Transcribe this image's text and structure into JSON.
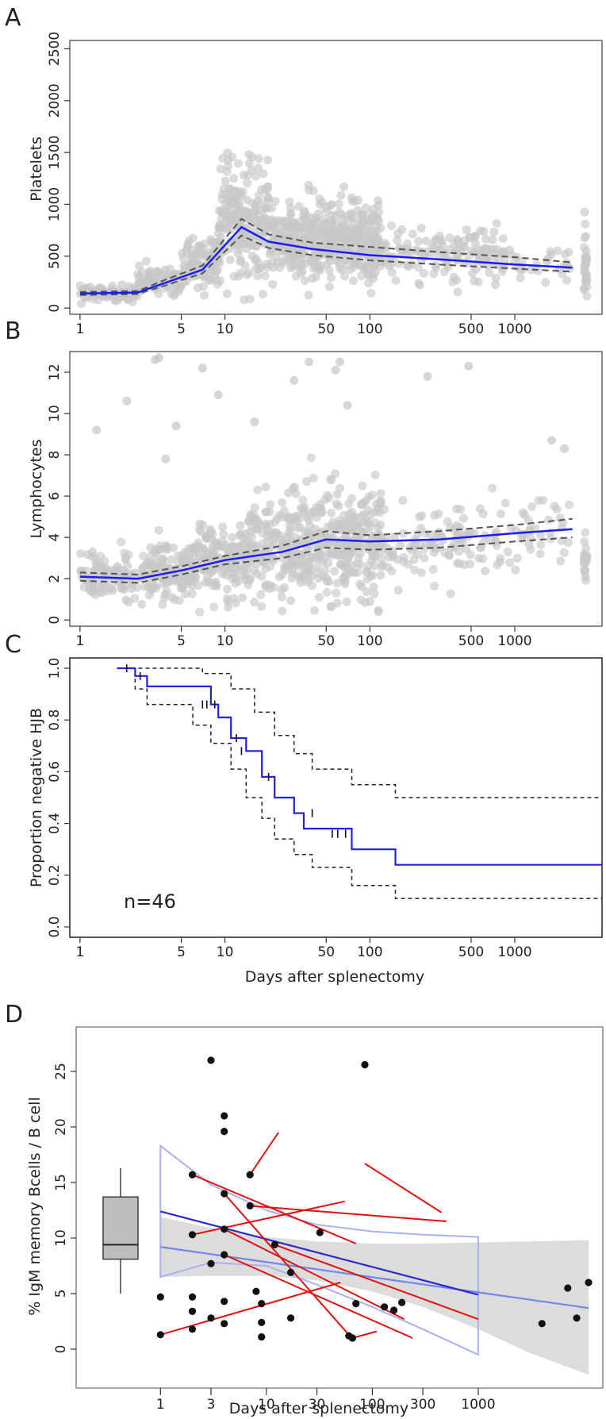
{
  "figure": {
    "colors": {
      "frame": "#666666",
      "points_grey": "#c8c8c8",
      "fit_blue": "#1a1aff",
      "ci_dash": "#555555",
      "km_dash": "#222222",
      "km_line": "#2222dd",
      "red_lines": "#e01010",
      "dots_black": "#111111",
      "box_fill": "#bdbdbd",
      "ribbon": "#dcdcdc",
      "line_dark_blue": "#2a2acc",
      "line_light_blue": "#6f86ee",
      "outline_light_blue": "#a9b2ee"
    }
  },
  "chart_data": [
    {
      "panel": "A",
      "type": "scatter",
      "x_scale": "log",
      "xlim": [
        0.85,
        4000
      ],
      "ylim": [
        -60,
        2580
      ],
      "x_ticks": [
        1,
        5,
        10,
        50,
        100,
        500,
        1000
      ],
      "x_tick_labels": [
        "1",
        "5",
        "10",
        "50",
        "100",
        "500",
        "1000"
      ],
      "y_ticks": [
        0,
        500,
        1000,
        1500,
        2000,
        2500
      ],
      "y_tick_labels": [
        "0",
        "500",
        "1000",
        "1500",
        "2000",
        "2500"
      ],
      "ylabel": "Platelets",
      "xlabel": "",
      "fit": {
        "x": [
          1,
          2.5,
          4,
          7,
          13,
          20,
          40,
          100,
          300,
          1000,
          2500
        ],
        "y": [
          140,
          150,
          250,
          370,
          780,
          640,
          570,
          510,
          470,
          420,
          390
        ]
      },
      "ci_upper": {
        "x": [
          1,
          2.5,
          4,
          7,
          13,
          20,
          40,
          100,
          300,
          1000,
          2500
        ],
        "y": [
          155,
          165,
          280,
          410,
          860,
          710,
          630,
          590,
          540,
          490,
          440
        ]
      },
      "ci_lower": {
        "x": [
          1,
          2.5,
          4,
          7,
          13,
          20,
          40,
          100,
          300,
          1000,
          2500
        ],
        "y": [
          125,
          135,
          225,
          335,
          700,
          580,
          510,
          460,
          420,
          380,
          350
        ]
      },
      "point_clusters": [
        {
          "x_from": 1,
          "x_to": 2.5,
          "y_center": 150,
          "y_spread": 80,
          "count": 90
        },
        {
          "x_from": 2.5,
          "x_to": 5,
          "y_center": 260,
          "y_spread": 120,
          "count": 90
        },
        {
          "x_from": 5,
          "x_to": 9,
          "y_center": 430,
          "y_spread": 260,
          "count": 100
        },
        {
          "x_from": 9,
          "x_to": 20,
          "y_center": 850,
          "y_spread": 450,
          "count": 230
        },
        {
          "x_from": 20,
          "x_to": 50,
          "y_center": 640,
          "y_spread": 330,
          "count": 230
        },
        {
          "x_from": 50,
          "x_to": 120,
          "y_center": 640,
          "y_spread": 330,
          "count": 250
        },
        {
          "x_from": 120,
          "x_to": 400,
          "y_center": 520,
          "y_spread": 220,
          "count": 80
        },
        {
          "x_from": 400,
          "x_to": 1000,
          "y_center": 520,
          "y_spread": 260,
          "count": 70
        },
        {
          "x_from": 1000,
          "x_to": 2500,
          "y_center": 420,
          "y_spread": 150,
          "count": 25
        },
        {
          "x_from": 3000,
          "x_to": 3150,
          "y_center": 520,
          "y_spread": 300,
          "count": 30
        }
      ]
    },
    {
      "panel": "B",
      "type": "scatter",
      "x_scale": "log",
      "xlim": [
        0.85,
        4000
      ],
      "ylim": [
        -0.3,
        13
      ],
      "x_ticks": [
        1,
        5,
        10,
        50,
        100,
        500,
        1000
      ],
      "x_tick_labels": [
        "1",
        "5",
        "10",
        "50",
        "100",
        "500",
        "1000"
      ],
      "y_ticks": [
        0,
        2,
        4,
        6,
        8,
        10,
        12
      ],
      "y_tick_labels": [
        "0",
        "2",
        "4",
        "6",
        "8",
        "10",
        "12"
      ],
      "ylabel": "Lymphocytes",
      "xlabel": "",
      "fit": {
        "x": [
          1,
          2.5,
          5,
          10,
          25,
          50,
          100,
          300,
          1000,
          2500
        ],
        "y": [
          2.1,
          2.0,
          2.4,
          2.9,
          3.3,
          3.9,
          3.8,
          3.9,
          4.2,
          4.4
        ]
      },
      "ci_upper": {
        "x": [
          1,
          2.5,
          5,
          10,
          25,
          50,
          100,
          300,
          1000,
          2500
        ],
        "y": [
          2.3,
          2.2,
          2.6,
          3.1,
          3.6,
          4.3,
          4.1,
          4.3,
          4.6,
          4.9
        ]
      },
      "ci_lower": {
        "x": [
          1,
          2.5,
          5,
          10,
          25,
          50,
          100,
          300,
          1000,
          2500
        ],
        "y": [
          1.9,
          1.8,
          2.2,
          2.7,
          3.0,
          3.5,
          3.4,
          3.5,
          3.8,
          4.0
        ]
      },
      "point_clusters": [
        {
          "x_from": 1,
          "x_to": 2.5,
          "y_center": 2.1,
          "y_spread": 1.0,
          "count": 110
        },
        {
          "x_from": 2.5,
          "x_to": 6,
          "y_center": 2.3,
          "y_spread": 1.2,
          "count": 140
        },
        {
          "x_from": 6,
          "x_to": 15,
          "y_center": 2.9,
          "y_spread": 1.6,
          "count": 180
        },
        {
          "x_from": 15,
          "x_to": 45,
          "y_center": 3.6,
          "y_spread": 2.2,
          "count": 220
        },
        {
          "x_from": 45,
          "x_to": 120,
          "y_center": 3.8,
          "y_spread": 2.4,
          "count": 230
        },
        {
          "x_from": 120,
          "x_to": 500,
          "y_center": 3.8,
          "y_spread": 1.8,
          "count": 90
        },
        {
          "x_from": 500,
          "x_to": 2500,
          "y_center": 4.0,
          "y_spread": 1.8,
          "count": 60
        },
        {
          "x_from": 3000,
          "x_to": 3150,
          "y_center": 3.0,
          "y_spread": 1.4,
          "count": 20
        }
      ],
      "outliers": [
        {
          "x": 1.3,
          "y": 9.2
        },
        {
          "x": 2.1,
          "y": 10.6
        },
        {
          "x": 3.3,
          "y": 12.6
        },
        {
          "x": 3.5,
          "y": 12.7
        },
        {
          "x": 3.9,
          "y": 7.8
        },
        {
          "x": 4.6,
          "y": 9.4
        },
        {
          "x": 7,
          "y": 12.2
        },
        {
          "x": 9,
          "y": 10.9
        },
        {
          "x": 16,
          "y": 9.6
        },
        {
          "x": 30,
          "y": 11.6
        },
        {
          "x": 38,
          "y": 12.5
        },
        {
          "x": 58,
          "y": 12.1
        },
        {
          "x": 62,
          "y": 12.5
        },
        {
          "x": 70,
          "y": 10.4
        },
        {
          "x": 250,
          "y": 11.8
        },
        {
          "x": 480,
          "y": 12.3
        },
        {
          "x": 1800,
          "y": 8.7
        },
        {
          "x": 2200,
          "y": 8.3
        }
      ]
    },
    {
      "panel": "C",
      "type": "line",
      "subtype": "kaplan-meier",
      "x_scale": "log",
      "xlim": [
        0.85,
        4000
      ],
      "ylim": [
        -0.04,
        1.04
      ],
      "x_ticks": [
        1,
        5,
        10,
        50,
        100,
        500,
        1000
      ],
      "x_tick_labels": [
        "1",
        "5",
        "10",
        "50",
        "100",
        "500",
        "1000"
      ],
      "y_ticks": [
        0.0,
        0.2,
        0.4,
        0.6,
        0.8,
        1.0
      ],
      "y_tick_labels": [
        "0.0",
        "0.2",
        "0.4",
        "0.6",
        "0.8",
        "1.0"
      ],
      "ylabel": "Proportion negative HJB",
      "xlabel": "Days after splenectomy",
      "annotation": "n=46",
      "survival": {
        "t": [
          1.8,
          2.4,
          2.9,
          5,
          8,
          9,
          11,
          14,
          18,
          22,
          30,
          35,
          75,
          150,
          4000
        ],
        "s": [
          1.0,
          0.97,
          0.93,
          0.93,
          0.86,
          0.81,
          0.73,
          0.68,
          0.58,
          0.5,
          0.44,
          0.38,
          0.3,
          0.24,
          0.24
        ]
      },
      "upper": {
        "t": [
          1.8,
          2.9,
          7,
          11,
          16,
          22,
          30,
          40,
          75,
          150,
          4000
        ],
        "s": [
          1.0,
          1.0,
          0.98,
          0.92,
          0.83,
          0.74,
          0.67,
          0.61,
          0.55,
          0.5,
          0.5
        ]
      },
      "lower": {
        "t": [
          1.8,
          2.4,
          2.9,
          6,
          8,
          11,
          14,
          18,
          22,
          30,
          40,
          75,
          150,
          4000
        ],
        "s": [
          1.0,
          0.92,
          0.86,
          0.78,
          0.71,
          0.61,
          0.5,
          0.42,
          0.34,
          0.28,
          0.23,
          0.16,
          0.11,
          0.11
        ]
      },
      "censor_marks": [
        {
          "t": 2.1,
          "s": 1.0
        },
        {
          "t": 2.6,
          "s": 0.97
        },
        {
          "t": 7,
          "s": 0.86
        },
        {
          "t": 7.5,
          "s": 0.86
        },
        {
          "t": 8.5,
          "s": 0.86
        },
        {
          "t": 12,
          "s": 0.73
        },
        {
          "t": 13,
          "s": 0.68
        },
        {
          "t": 20,
          "s": 0.58
        },
        {
          "t": 40,
          "s": 0.44
        },
        {
          "t": 55,
          "s": 0.36
        },
        {
          "t": 60,
          "s": 0.36
        },
        {
          "t": 68,
          "s": 0.36
        }
      ]
    },
    {
      "panel": "D",
      "type": "scatter",
      "x_scale": "log",
      "xlim": [
        0.16,
        15000
      ],
      "ylim": [
        -3.5,
        29
      ],
      "x_ticks": [
        1,
        3,
        10,
        30,
        100,
        300,
        1000
      ],
      "x_tick_labels": [
        "1",
        "3",
        "10",
        "30",
        "100",
        "300",
        "1000"
      ],
      "y_ticks": [
        0,
        5,
        10,
        15,
        20,
        25
      ],
      "y_tick_labels": [
        "0",
        "5",
        "10",
        "15",
        "20",
        "25"
      ],
      "ylabel": "% IgM memory Bcells / B cell",
      "xlabel": "Days after splenectomy",
      "boxplot": {
        "x": 0.42,
        "min": 5.0,
        "q1": 8.1,
        "median": 9.4,
        "q3": 13.7,
        "max": 16.3
      },
      "points": [
        {
          "x": 1,
          "y": 4.7
        },
        {
          "x": 1,
          "y": 1.3
        },
        {
          "x": 2,
          "y": 15.7
        },
        {
          "x": 2,
          "y": 10.3
        },
        {
          "x": 2,
          "y": 4.7
        },
        {
          "x": 2,
          "y": 3.4
        },
        {
          "x": 2,
          "y": 1.8
        },
        {
          "x": 3,
          "y": 26.0
        },
        {
          "x": 3,
          "y": 7.7
        },
        {
          "x": 3,
          "y": 2.8
        },
        {
          "x": 4,
          "y": 21.0
        },
        {
          "x": 4,
          "y": 19.6
        },
        {
          "x": 4,
          "y": 14.0
        },
        {
          "x": 4,
          "y": 10.8
        },
        {
          "x": 4,
          "y": 8.5
        },
        {
          "x": 4,
          "y": 4.3
        },
        {
          "x": 4,
          "y": 2.3
        },
        {
          "x": 7,
          "y": 15.7
        },
        {
          "x": 7,
          "y": 12.9
        },
        {
          "x": 8,
          "y": 5.2
        },
        {
          "x": 9,
          "y": 4.1
        },
        {
          "x": 9,
          "y": 2.4
        },
        {
          "x": 9,
          "y": 1.1
        },
        {
          "x": 12,
          "y": 9.4
        },
        {
          "x": 17,
          "y": 6.9
        },
        {
          "x": 17,
          "y": 2.8
        },
        {
          "x": 32,
          "y": 10.5
        },
        {
          "x": 60,
          "y": 1.2
        },
        {
          "x": 65,
          "y": 1.0
        },
        {
          "x": 70,
          "y": 4.1
        },
        {
          "x": 85,
          "y": 25.6
        },
        {
          "x": 130,
          "y": 3.8
        },
        {
          "x": 160,
          "y": 3.5
        },
        {
          "x": 190,
          "y": 4.2
        },
        {
          "x": 4000,
          "y": 2.3
        },
        {
          "x": 7000,
          "y": 5.5
        },
        {
          "x": 8500,
          "y": 2.8
        },
        {
          "x": 11000,
          "y": 6.0
        }
      ],
      "red_segments": [
        {
          "x1": 1,
          "y1": 1.3,
          "x2": 50,
          "y2": 6.0
        },
        {
          "x1": 2,
          "y1": 15.7,
          "x2": 70,
          "y2": 9.5
        },
        {
          "x1": 2,
          "y1": 10.3,
          "x2": 55,
          "y2": 13.3
        },
        {
          "x1": 4,
          "y1": 14.0,
          "x2": 60,
          "y2": 1.3
        },
        {
          "x1": 4,
          "y1": 10.8,
          "x2": 200,
          "y2": 2.7
        },
        {
          "x1": 4,
          "y1": 8.5,
          "x2": 240,
          "y2": 1.0
        },
        {
          "x1": 7,
          "y1": 15.7,
          "x2": 13,
          "y2": 19.5
        },
        {
          "x1": 7,
          "y1": 12.9,
          "x2": 500,
          "y2": 11.5
        },
        {
          "x1": 12,
          "y1": 9.4,
          "x2": 1000,
          "y2": 2.7
        },
        {
          "x1": 65,
          "y1": 1.0,
          "x2": 110,
          "y2": 1.6
        },
        {
          "x1": 85,
          "y1": 16.7,
          "x2": 450,
          "y2": 12.3
        }
      ],
      "fit_dark_blue": {
        "x": [
          1,
          1000
        ],
        "y": [
          12.4,
          4.9
        ]
      },
      "fit_light_blue": {
        "x": [
          1,
          11000
        ],
        "y": [
          9.2,
          3.7
        ]
      },
      "outline_upper": {
        "x": [
          1,
          3,
          10,
          30,
          100,
          300,
          1000
        ],
        "y": [
          18.3,
          14.8,
          12.5,
          11.2,
          10.6,
          10.3,
          10.1
        ]
      },
      "outline_lower": {
        "x": [
          1,
          3,
          10,
          30,
          100,
          300,
          1000
        ],
        "y": [
          6.5,
          7.8,
          7.5,
          5.8,
          3.8,
          1.8,
          -0.5
        ]
      },
      "ribbon_upper": {
        "x": [
          1,
          3,
          10,
          30,
          100,
          300,
          1000,
          3000,
          11000
        ],
        "y": [
          11.9,
          10.9,
          10.1,
          9.7,
          9.5,
          9.5,
          9.6,
          9.7,
          9.8
        ]
      },
      "ribbon_lower": {
        "x": [
          1,
          3,
          10,
          30,
          100,
          300,
          1000,
          3000,
          11000
        ],
        "y": [
          6.5,
          6.6,
          6.6,
          6.2,
          5.2,
          3.8,
          1.8,
          -0.3,
          -2.3
        ]
      }
    }
  ]
}
